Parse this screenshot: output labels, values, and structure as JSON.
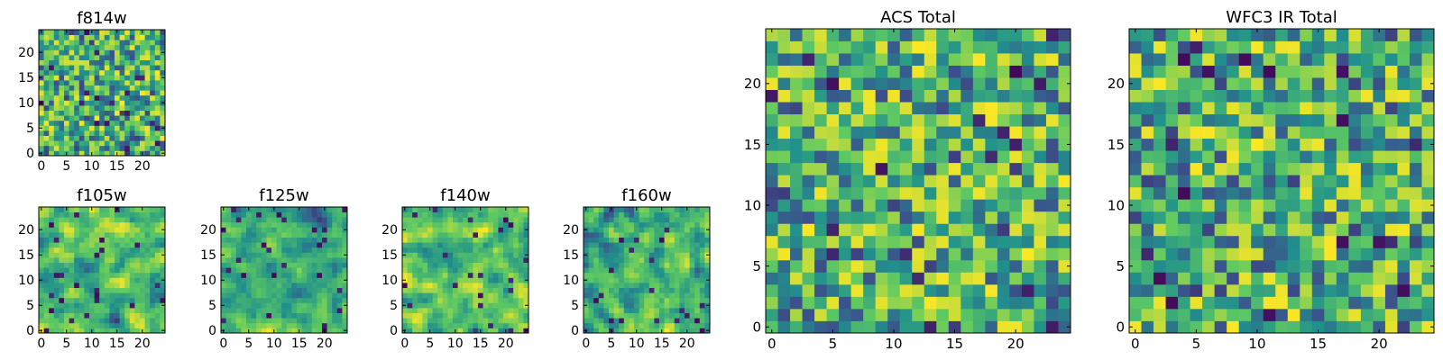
{
  "figure": {
    "type": "heatmap",
    "colormap": [
      "#440154",
      "#3b528b",
      "#21918c",
      "#5ec962",
      "#fde725"
    ]
  },
  "chart_data": [
    {
      "type": "heatmap",
      "title": "f814w",
      "grid_size": 25,
      "xticks": [
        "0",
        "5",
        "10",
        "15",
        "20"
      ],
      "yticks": [
        "0",
        "5",
        "10",
        "15",
        "20"
      ],
      "xlim": [
        0,
        25
      ],
      "ylim": [
        0,
        25
      ],
      "seed": 814,
      "smooth": 0
    },
    {
      "type": "heatmap",
      "title": "f105w",
      "grid_size": 25,
      "xticks": [
        "0",
        "5",
        "10",
        "15",
        "20"
      ],
      "yticks": [
        "0",
        "5",
        "10",
        "15",
        "20"
      ],
      "xlim": [
        0,
        25
      ],
      "ylim": [
        0,
        25
      ],
      "seed": 105,
      "smooth": 1
    },
    {
      "type": "heatmap",
      "title": "f125w",
      "grid_size": 25,
      "xticks": [
        "0",
        "5",
        "10",
        "15",
        "20"
      ],
      "yticks": [
        "0",
        "5",
        "10",
        "15",
        "20"
      ],
      "xlim": [
        0,
        25
      ],
      "ylim": [
        0,
        25
      ],
      "seed": 125,
      "smooth": 1
    },
    {
      "type": "heatmap",
      "title": "f140w",
      "grid_size": 25,
      "xticks": [
        "0",
        "5",
        "10",
        "15",
        "20"
      ],
      "yticks": [
        "0",
        "5",
        "10",
        "15",
        "20"
      ],
      "xlim": [
        0,
        25
      ],
      "ylim": [
        0,
        25
      ],
      "seed": 140,
      "smooth": 1
    },
    {
      "type": "heatmap",
      "title": "f160w",
      "grid_size": 25,
      "xticks": [
        "0",
        "5",
        "10",
        "15",
        "20"
      ],
      "yticks": [
        "0",
        "5",
        "10",
        "15",
        "20"
      ],
      "xlim": [
        0,
        25
      ],
      "ylim": [
        0,
        25
      ],
      "seed": 160,
      "smooth": 1
    },
    {
      "type": "heatmap",
      "title": "ACS Total",
      "grid_size": 25,
      "xticks": [
        "0",
        "5",
        "10",
        "15",
        "20"
      ],
      "yticks": [
        "0",
        "5",
        "10",
        "15",
        "20"
      ],
      "xlim": [
        0,
        25
      ],
      "ylim": [
        0,
        25
      ],
      "seed": 7001,
      "smooth": 0
    },
    {
      "type": "heatmap",
      "title": "WFC3 IR Total",
      "grid_size": 25,
      "xticks": [
        "0",
        "5",
        "10",
        "15",
        "20"
      ],
      "yticks": [
        "0",
        "5",
        "10",
        "15",
        "20"
      ],
      "xlim": [
        0,
        25
      ],
      "ylim": [
        0,
        25
      ],
      "seed": 7002,
      "smooth": 0
    }
  ]
}
